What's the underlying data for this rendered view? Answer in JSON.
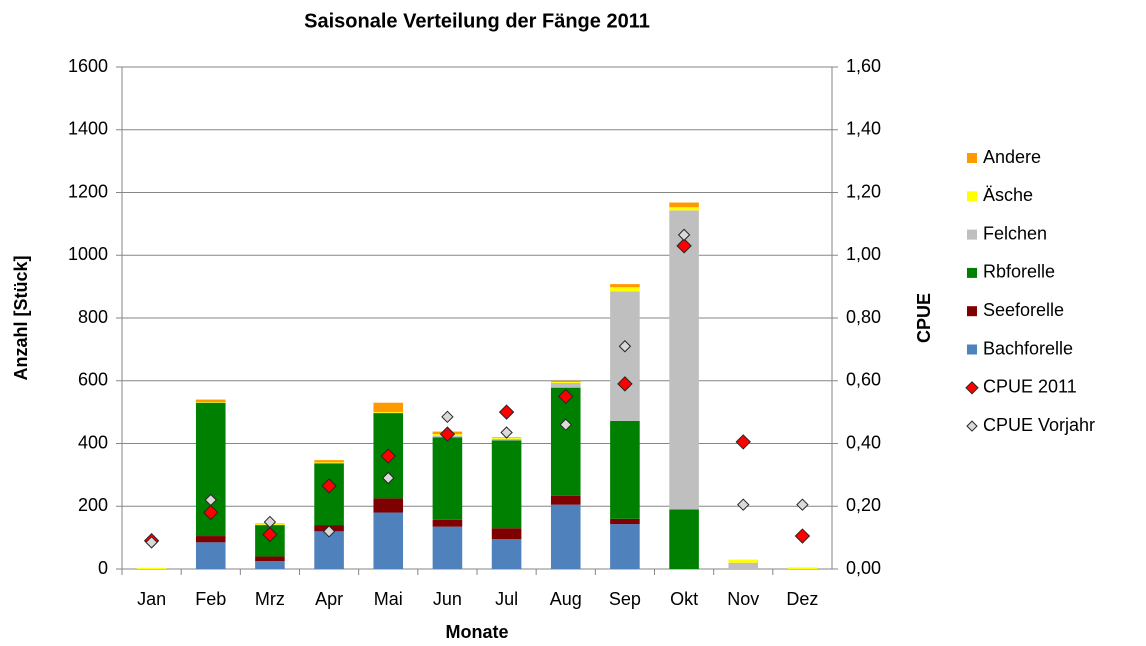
{
  "chart_data": {
    "type": "bar",
    "stacked": true,
    "title": "Saisonale Verteilung der Fänge 2011",
    "xlabel": "Monate",
    "ylabel": "Anzahl [Stück]",
    "y2label": "CPUE",
    "categories": [
      "Jan",
      "Feb",
      "Mrz",
      "Apr",
      "Mai",
      "Jun",
      "Jul",
      "Aug",
      "Sep",
      "Okt",
      "Nov",
      "Dez"
    ],
    "series": [
      {
        "name": "Bachforelle",
        "color": "#4f81bd",
        "values": [
          0,
          85,
          25,
          120,
          180,
          135,
          95,
          205,
          143,
          0,
          0,
          0
        ]
      },
      {
        "name": "Seeforelle",
        "color": "#7f0000",
        "values": [
          0,
          20,
          15,
          20,
          45,
          22,
          35,
          28,
          17,
          0,
          0,
          0
        ]
      },
      {
        "name": "Rbforelle",
        "color": "#008000",
        "values": [
          0,
          425,
          100,
          197,
          272,
          263,
          280,
          345,
          312,
          190,
          0,
          0
        ]
      },
      {
        "name": "Felchen",
        "color": "#bfbfbf",
        "values": [
          0,
          0,
          0,
          0,
          0,
          5,
          5,
          15,
          413,
          953,
          20,
          0
        ]
      },
      {
        "name": "Äsche",
        "color": "#ffff00",
        "values": [
          3,
          2,
          3,
          3,
          3,
          5,
          3,
          3,
          13,
          10,
          10,
          5
        ]
      },
      {
        "name": "Andere",
        "color": "#ff9900",
        "values": [
          0,
          8,
          2,
          7,
          30,
          8,
          2,
          4,
          10,
          15,
          0,
          0
        ]
      },
      {
        "name": "CPUE 2011",
        "type": "scatter",
        "axis": "y2",
        "marker": "diamond",
        "color": "#ff0000",
        "values": [
          0.09,
          0.18,
          0.11,
          0.265,
          0.36,
          0.43,
          0.5,
          0.55,
          0.59,
          1.03,
          0.405,
          0.105
        ]
      },
      {
        "name": "CPUE Vorjahr",
        "type": "scatter",
        "axis": "y2",
        "marker": "diamond",
        "color": "#d9d9d9",
        "values": [
          0.085,
          0.22,
          0.15,
          0.12,
          0.29,
          0.485,
          0.435,
          0.46,
          0.71,
          1.065,
          0.205,
          0.205
        ]
      }
    ],
    "ylim": [
      0,
      1600
    ],
    "yticks": [
      0,
      200,
      400,
      600,
      800,
      1000,
      1200,
      1400,
      1600
    ],
    "y2lim": [
      0,
      1.6
    ],
    "y2ticks": [
      {
        "value": 0,
        "label": "0,00"
      },
      {
        "value": 0.2,
        "label": "0,20"
      },
      {
        "value": 0.4,
        "label": "0,40"
      },
      {
        "value": 0.6,
        "label": "0,60"
      },
      {
        "value": 0.8,
        "label": "0,80"
      },
      {
        "value": 1.0,
        "label": "1,00"
      },
      {
        "value": 1.2,
        "label": "1,20"
      },
      {
        "value": 1.4,
        "label": "1,40"
      },
      {
        "value": 1.6,
        "label": "1,60"
      }
    ],
    "grid": true,
    "legend": "right"
  }
}
